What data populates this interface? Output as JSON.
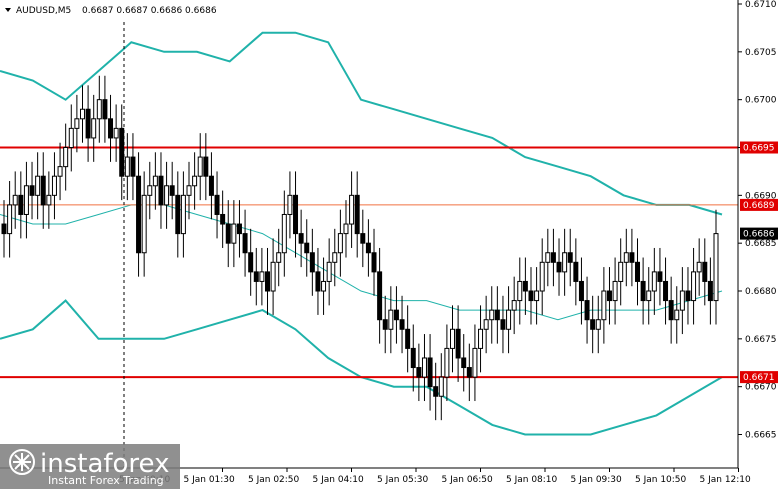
{
  "window": {
    "symbol_timeframe": "AUDUSD,M5",
    "ohlc": "0.6687 0.6687 0.6686 0.6686",
    "brand": {
      "name": "instaforex",
      "tagline": "Instant Forex Trading"
    }
  },
  "colors": {
    "candle": "#000000",
    "bollinger_bands": "#20b2aa",
    "level_line": "#e00000",
    "level_line_light": "#f07040",
    "price_tag_bg": "#ffffff"
  },
  "chart_data": {
    "type": "candlestick",
    "symbol": "AUDUSD",
    "timeframe": "M5",
    "ylim": [
      0.66615,
      0.671
    ],
    "y_ticks": [
      0.6665,
      0.667,
      0.6675,
      0.668,
      0.6685,
      0.669,
      0.6695,
      0.67,
      0.6705,
      0.671
    ],
    "x_ticks": [
      "5 Jan 00:10",
      "5 Jan 01:30",
      "5 Jan 02:50",
      "5 Jan 04:10",
      "5 Jan 05:30",
      "5 Jan 06:50",
      "5 Jan 08:10",
      "5 Jan 09:30",
      "5 Jan 10:50",
      "5 Jan 12:10"
    ],
    "current_price": 0.6686,
    "levels": [
      {
        "value": 0.6695,
        "label": "0.6695",
        "style": "bold"
      },
      {
        "value": 0.6689,
        "label": "0.6689",
        "style": "thin"
      },
      {
        "value": 0.6671,
        "label": "0.6671",
        "style": "bold"
      }
    ],
    "current_price_label": "0.6686",
    "closes": [
      0.6686,
      0.6689,
      0.669,
      0.6688,
      0.6691,
      0.669,
      0.6692,
      0.6689,
      0.669,
      0.6692,
      0.6693,
      0.6695,
      0.6697,
      0.6698,
      0.6699,
      0.6696,
      0.6698,
      0.67,
      0.6698,
      0.6696,
      0.6697,
      0.6692,
      0.6694,
      0.6692,
      0.6684,
      0.669,
      0.6691,
      0.6692,
      0.6689,
      0.6691,
      0.669,
      0.6686,
      0.669,
      0.6691,
      0.6692,
      0.6694,
      0.6692,
      0.669,
      0.6688,
      0.6687,
      0.6685,
      0.6687,
      0.6686,
      0.6684,
      0.6682,
      0.6681,
      0.6682,
      0.668,
      0.6683,
      0.6684,
      0.6688,
      0.669,
      0.6686,
      0.6685,
      0.6684,
      0.6682,
      0.668,
      0.6681,
      0.6683,
      0.6684,
      0.6686,
      0.6687,
      0.669,
      0.6686,
      0.6685,
      0.6684,
      0.6682,
      0.6677,
      0.6676,
      0.6678,
      0.6677,
      0.6676,
      0.6674,
      0.6672,
      0.6671,
      0.6673,
      0.667,
      0.6669,
      0.6671,
      0.6674,
      0.6676,
      0.6673,
      0.6672,
      0.6671,
      0.6674,
      0.6676,
      0.6677,
      0.6678,
      0.6677,
      0.6676,
      0.6678,
      0.6679,
      0.6681,
      0.668,
      0.6679,
      0.668,
      0.6683,
      0.6684,
      0.6683,
      0.6682,
      0.6684,
      0.6683,
      0.6681,
      0.6679,
      0.6677,
      0.6676,
      0.6677,
      0.668,
      0.6679,
      0.6681,
      0.6683,
      0.6684,
      0.6683,
      0.6681,
      0.6679,
      0.668,
      0.6682,
      0.6681,
      0.6679,
      0.6677,
      0.6678,
      0.668,
      0.6679,
      0.6682,
      0.6683,
      0.6681,
      0.6679,
      0.6686
    ],
    "bb_upper": [
      0.6703,
      0.6702,
      0.67,
      0.6703,
      0.6706,
      0.6705,
      0.6705,
      0.6704,
      0.6707,
      0.6707,
      0.6706,
      0.67,
      0.6699,
      0.6698,
      0.6697,
      0.6696,
      0.6694,
      0.6693,
      0.6692,
      0.669,
      0.6689,
      0.6689,
      0.6688
    ],
    "bb_middle": [
      0.6688,
      0.6687,
      0.6687,
      0.6688,
      0.6689,
      0.6689,
      0.6688,
      0.6687,
      0.6686,
      0.6684,
      0.6682,
      0.668,
      0.6679,
      0.6679,
      0.6678,
      0.6678,
      0.6678,
      0.6677,
      0.6678,
      0.6678,
      0.6678,
      0.6679,
      0.668
    ],
    "bb_lower": [
      0.6675,
      0.6676,
      0.6679,
      0.6675,
      0.6675,
      0.6675,
      0.6676,
      0.6677,
      0.6678,
      0.6676,
      0.6673,
      0.6671,
      0.667,
      0.667,
      0.6668,
      0.6666,
      0.6665,
      0.6665,
      0.6665,
      0.6666,
      0.6667,
      0.6669,
      0.6671
    ]
  }
}
